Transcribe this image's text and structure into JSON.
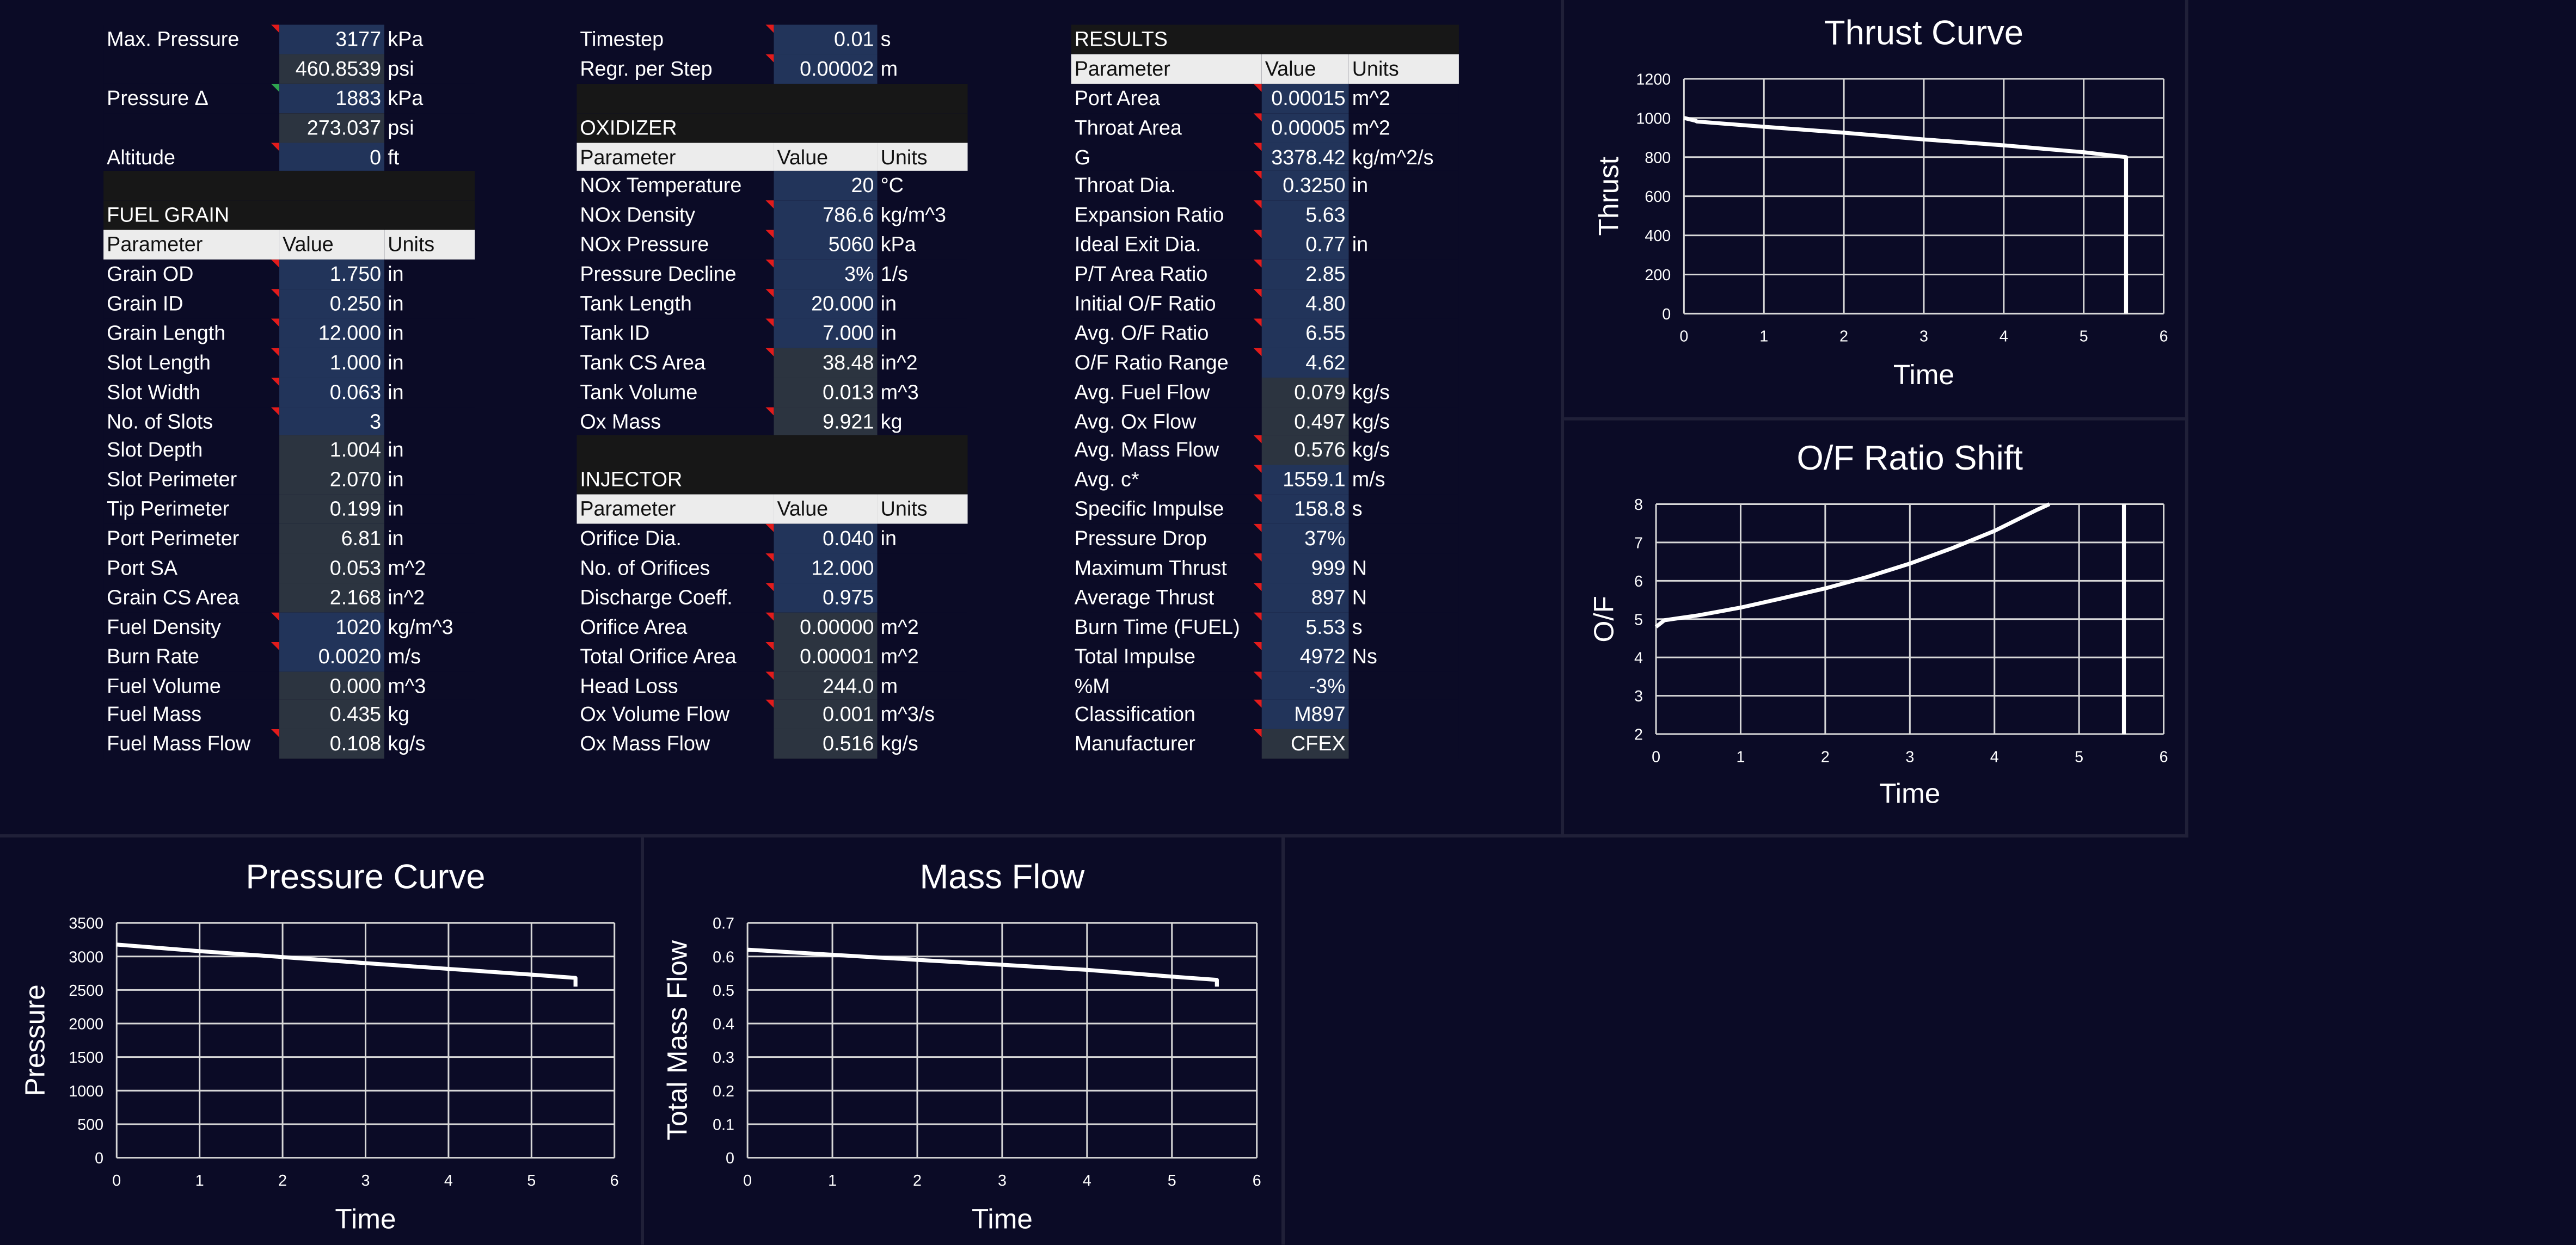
{
  "pressure_block": {
    "rows": [
      {
        "label": "Max. Pressure",
        "value": "3177",
        "unit": "kPa"
      },
      {
        "label": "",
        "value": "460.8539",
        "unit": "psi"
      },
      {
        "label": "Pressure Δ",
        "value": "1883",
        "unit": "kPa"
      },
      {
        "label": "",
        "value": "273.037",
        "unit": "psi"
      },
      {
        "label": "Altitude",
        "value": "0",
        "unit": "ft"
      }
    ]
  },
  "fuel_grain": {
    "title": "FUEL GRAIN",
    "headers": [
      "Parameter",
      "Value",
      "Units"
    ],
    "rows": [
      {
        "label": "Grain OD",
        "value": "1.750",
        "unit": "in"
      },
      {
        "label": "Grain ID",
        "value": "0.250",
        "unit": "in"
      },
      {
        "label": "Grain Length",
        "value": "12.000",
        "unit": "in"
      },
      {
        "label": "Slot Length",
        "value": "1.000",
        "unit": "in"
      },
      {
        "label": "Slot Width",
        "value": "0.063",
        "unit": "in"
      },
      {
        "label": "No. of Slots",
        "value": "3",
        "unit": ""
      },
      {
        "label": "Slot Depth",
        "value": "1.004",
        "unit": "in"
      },
      {
        "label": "Slot Perimeter",
        "value": "2.070",
        "unit": "in"
      },
      {
        "label": "Tip Perimeter",
        "value": "0.199",
        "unit": "in"
      },
      {
        "label": "Port Perimeter",
        "value": "6.81",
        "unit": "in"
      },
      {
        "label": "Port SA",
        "value": "0.053",
        "unit": "m^2"
      },
      {
        "label": "Grain CS Area",
        "value": "2.168",
        "unit": "in^2"
      },
      {
        "label": "Fuel Density",
        "value": "1020",
        "unit": "kg/m^3"
      },
      {
        "label": "Burn Rate",
        "value": "0.0020",
        "unit": "m/s"
      },
      {
        "label": "Fuel Volume",
        "value": "0.000",
        "unit": "m^3"
      },
      {
        "label": "Fuel Mass",
        "value": "0.435",
        "unit": "kg"
      },
      {
        "label": "Fuel Mass Flow",
        "value": "0.108",
        "unit": "kg/s"
      }
    ]
  },
  "sim": {
    "rows": [
      {
        "label": "Timestep",
        "value": "0.01",
        "unit": "s"
      },
      {
        "label": "Regr. per Step",
        "value": "0.00002",
        "unit": "m"
      }
    ]
  },
  "oxidizer": {
    "title": "OXIDIZER",
    "headers": [
      "Parameter",
      "Value",
      "Units"
    ],
    "rows": [
      {
        "label": "NOx Temperature",
        "value": "20",
        "unit": "°C"
      },
      {
        "label": "NOx Density",
        "value": "786.6",
        "unit": "kg/m^3"
      },
      {
        "label": "NOx Pressure",
        "value": "5060",
        "unit": "kPa"
      },
      {
        "label": "Pressure Decline",
        "value": "3%",
        "unit": "1/s"
      },
      {
        "label": "Tank Length",
        "value": "20.000",
        "unit": "in"
      },
      {
        "label": "Tank ID",
        "value": "7.000",
        "unit": "in"
      },
      {
        "label": "Tank CS Area",
        "value": "38.48",
        "unit": "in^2"
      },
      {
        "label": "Tank Volume",
        "value": "0.013",
        "unit": "m^3"
      },
      {
        "label": "Ox Mass",
        "value": "9.921",
        "unit": "kg"
      }
    ]
  },
  "injector": {
    "title": "INJECTOR",
    "headers": [
      "Parameter",
      "Value",
      "Units"
    ],
    "rows": [
      {
        "label": "Orifice Dia.",
        "value": "0.040",
        "unit": "in"
      },
      {
        "label": "No. of Orifices",
        "value": "12.000",
        "unit": ""
      },
      {
        "label": "Discharge Coeff.",
        "value": "0.975",
        "unit": ""
      },
      {
        "label": "Orifice Area",
        "value": "0.00000",
        "unit": "m^2"
      },
      {
        "label": "Total Orifice Area",
        "value": "0.00001",
        "unit": "m^2"
      },
      {
        "label": "Head Loss",
        "value": "244.0",
        "unit": "m"
      },
      {
        "label": "Ox Volume Flow",
        "value": "0.001",
        "unit": "m^3/s"
      },
      {
        "label": "Ox Mass Flow",
        "value": "0.516",
        "unit": "kg/s"
      }
    ]
  },
  "results": {
    "title": "RESULTS",
    "headers": [
      "Parameter",
      "Value",
      "Units"
    ],
    "rows": [
      {
        "label": "Port Area",
        "value": "0.00015",
        "unit": "m^2"
      },
      {
        "label": "Throat Area",
        "value": "0.00005",
        "unit": "m^2"
      },
      {
        "label": "G",
        "value": "3378.42",
        "unit": "kg/m^2/s"
      },
      {
        "label": "Throat Dia.",
        "value": "0.3250",
        "unit": "in"
      },
      {
        "label": "Expansion Ratio",
        "value": "5.63",
        "unit": ""
      },
      {
        "label": "Ideal Exit Dia.",
        "value": "0.77",
        "unit": "in"
      },
      {
        "label": "P/T Area Ratio",
        "value": "2.85",
        "unit": ""
      },
      {
        "label": "Initial O/F Ratio",
        "value": "4.80",
        "unit": ""
      },
      {
        "label": "Avg. O/F Ratio",
        "value": "6.55",
        "unit": ""
      },
      {
        "label": "O/F Ratio Range",
        "value": "4.62",
        "unit": ""
      },
      {
        "label": "Avg. Fuel Flow",
        "value": "0.079",
        "unit": "kg/s"
      },
      {
        "label": "Avg. Ox Flow",
        "value": "0.497",
        "unit": "kg/s"
      },
      {
        "label": "Avg. Mass Flow",
        "value": "0.576",
        "unit": "kg/s"
      },
      {
        "label": "Avg. c*",
        "value": "1559.1",
        "unit": "m/s"
      },
      {
        "label": "Specific Impulse",
        "value": "158.8",
        "unit": "s"
      },
      {
        "label": "Pressure Drop",
        "value": "37%",
        "unit": ""
      },
      {
        "label": "Maximum Thrust",
        "value": "999",
        "unit": "N"
      },
      {
        "label": "Average Thrust",
        "value": "897",
        "unit": "N"
      },
      {
        "label": "Burn Time (FUEL)",
        "value": "5.53",
        "unit": "s"
      },
      {
        "label": "Total Impulse",
        "value": "4972",
        "unit": "Ns"
      },
      {
        "label": "%M",
        "value": "-3%",
        "unit": ""
      },
      {
        "label": "Classification",
        "value": "M897",
        "unit": ""
      },
      {
        "label": "Manufacturer",
        "value": "CFEX",
        "unit": ""
      }
    ]
  },
  "colors": {
    "background": "#0b0b26",
    "comment_marker": "#e21b1b",
    "value_cell": "#2c3440",
    "value_cell_blue": "#22345a",
    "header_row": "#ececec"
  },
  "chart_data": [
    {
      "id": "thrust",
      "type": "line",
      "title": "Thrust Curve",
      "xlabel": "Time",
      "ylabel": "Thrust",
      "xlim": [
        0,
        6
      ],
      "ylim": [
        0,
        1200
      ],
      "xticks": [
        0,
        1,
        2,
        3,
        4,
        5,
        6
      ],
      "yticks": [
        0,
        200,
        400,
        600,
        800,
        1000,
        1200
      ],
      "grid": true,
      "series": [
        {
          "x": [
            0,
            0.15,
            0.16,
            1,
            2,
            3,
            4,
            5,
            5.53,
            5.53
          ],
          "y": [
            1000,
            985,
            982,
            955,
            925,
            890,
            860,
            825,
            800,
            0
          ]
        }
      ]
    },
    {
      "id": "of",
      "type": "line",
      "title": "O/F Ratio Shift",
      "xlabel": "Time",
      "ylabel": "O/F",
      "xlim": [
        0,
        6
      ],
      "ylim": [
        2,
        8
      ],
      "xticks": [
        0,
        1,
        2,
        3,
        4,
        5,
        6
      ],
      "yticks": [
        2,
        3,
        4,
        5,
        6,
        7,
        8
      ],
      "grid": true,
      "series": [
        {
          "x": [
            0,
            0.1,
            0.5,
            1,
            1.5,
            2,
            2.5,
            3,
            3.5,
            4,
            4.5,
            4.65
          ],
          "y": [
            4.8,
            4.97,
            5.1,
            5.3,
            5.55,
            5.8,
            6.1,
            6.45,
            6.85,
            7.3,
            7.85,
            8.0
          ]
        },
        {
          "x": [
            5.53,
            5.53
          ],
          "y": [
            2,
            8
          ]
        }
      ]
    },
    {
      "id": "pressure",
      "type": "line",
      "title": "Pressure Curve",
      "xlabel": "Time",
      "ylabel": "Pressure",
      "xlim": [
        0,
        6
      ],
      "ylim": [
        0,
        3500
      ],
      "xticks": [
        0,
        1,
        2,
        3,
        4,
        5,
        6
      ],
      "yticks": [
        0,
        500,
        1000,
        1500,
        2000,
        2500,
        3000,
        3500
      ],
      "grid": true,
      "series": [
        {
          "x": [
            0,
            1,
            2,
            3,
            4,
            5,
            5.53,
            5.53
          ],
          "y": [
            3177,
            3080,
            2990,
            2900,
            2815,
            2730,
            2680,
            2550
          ]
        }
      ]
    },
    {
      "id": "massflow",
      "type": "line",
      "title": "Mass Flow",
      "xlabel": "Time",
      "ylabel": "Total Mass Flow",
      "xlim": [
        0,
        6
      ],
      "ylim": [
        0,
        0.7
      ],
      "xticks": [
        0,
        1,
        2,
        3,
        4,
        5,
        6
      ],
      "yticks": [
        0,
        0.1,
        0.2,
        0.3,
        0.4,
        0.5,
        0.6,
        0.7
      ],
      "grid": true,
      "series": [
        {
          "x": [
            0,
            1,
            2,
            3,
            4,
            5,
            5.53,
            5.53
          ],
          "y": [
            0.62,
            0.605,
            0.59,
            0.575,
            0.56,
            0.54,
            0.53,
            0.51
          ]
        }
      ]
    }
  ]
}
